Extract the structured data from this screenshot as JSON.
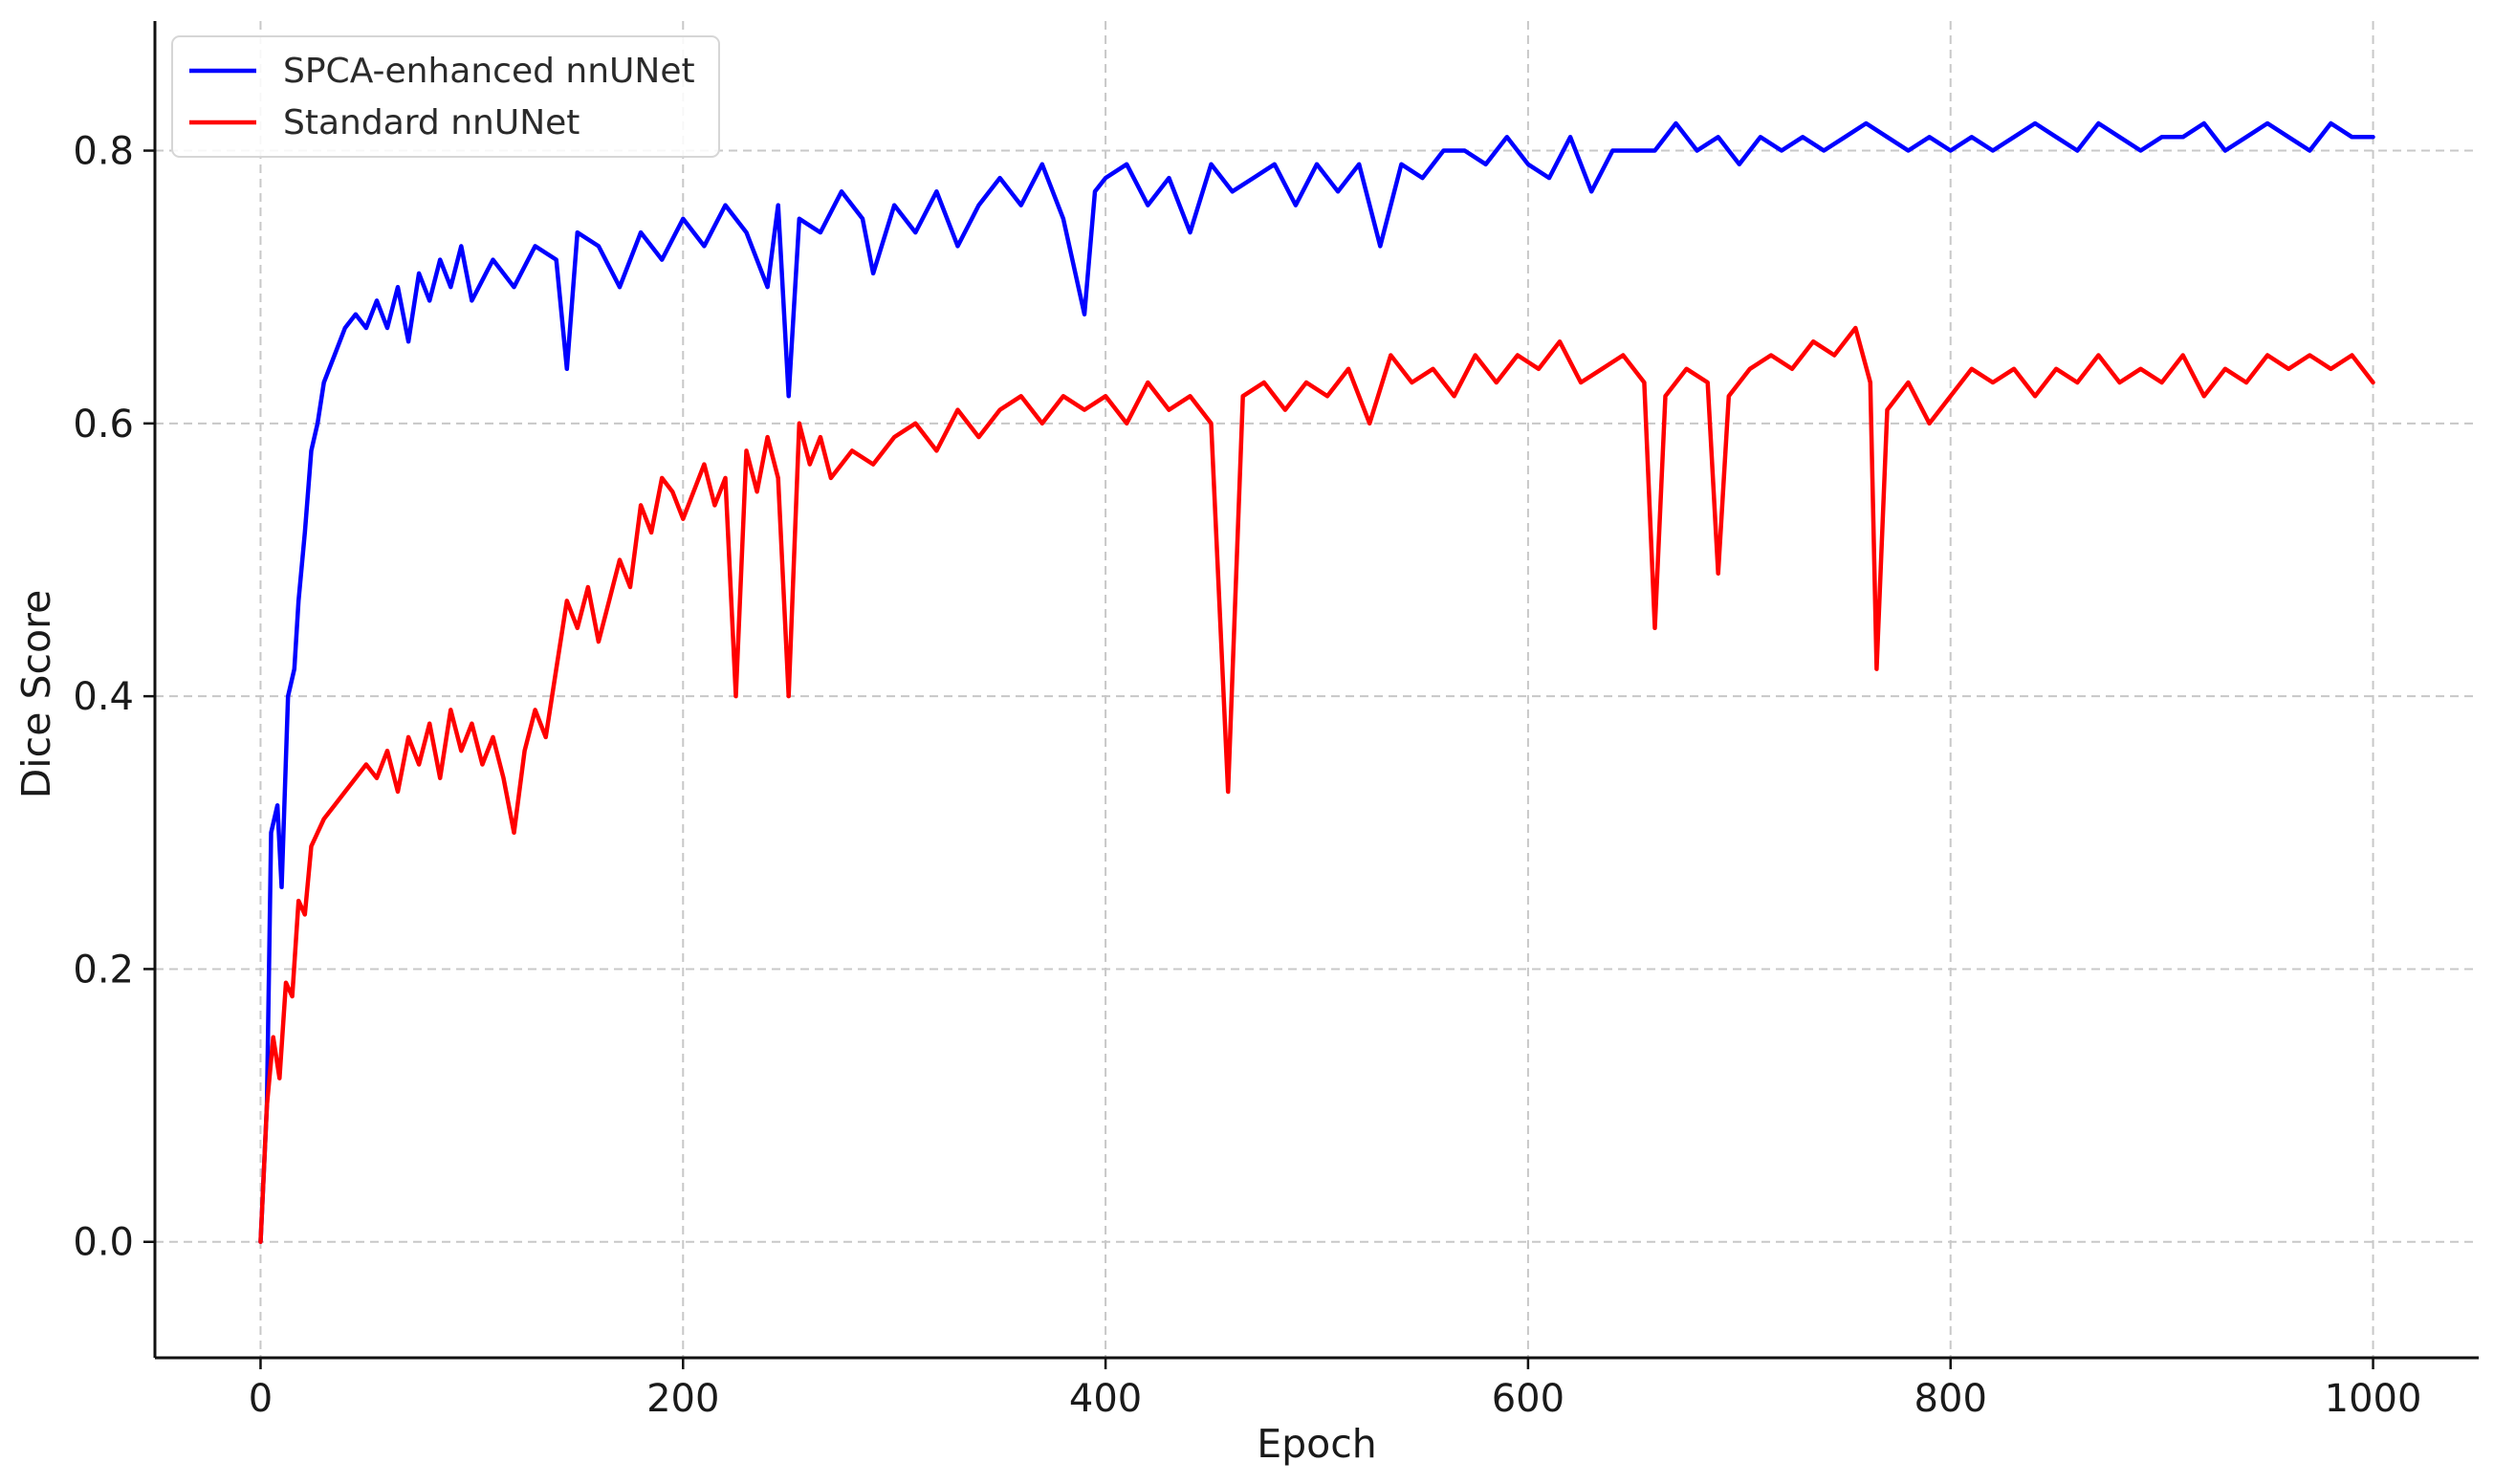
{
  "chart_data": {
    "type": "line",
    "title": "",
    "xlabel": "Epoch",
    "ylabel": "Dice Score",
    "xlim": [
      -50,
      1050
    ],
    "ylim": [
      -0.085,
      0.895
    ],
    "xticks": [
      0,
      200,
      400,
      600,
      800,
      1000
    ],
    "yticks": [
      0.0,
      0.2,
      0.4,
      0.6,
      0.8
    ],
    "xtick_labels": [
      "0",
      "200",
      "400",
      "600",
      "800",
      "1000"
    ],
    "ytick_labels": [
      "0.0",
      "0.2",
      "0.4",
      "0.6",
      "0.8"
    ],
    "grid": true,
    "legend_position": "upper-left",
    "series": [
      {
        "name": "SPCA-enhanced nnUNet",
        "color": "#0000ff",
        "points": [
          [
            0,
            0.0
          ],
          [
            3,
            0.1
          ],
          [
            5,
            0.3
          ],
          [
            8,
            0.32
          ],
          [
            10,
            0.26
          ],
          [
            13,
            0.4
          ],
          [
            16,
            0.42
          ],
          [
            18,
            0.47
          ],
          [
            21,
            0.52
          ],
          [
            24,
            0.58
          ],
          [
            27,
            0.6
          ],
          [
            30,
            0.63
          ],
          [
            35,
            0.65
          ],
          [
            40,
            0.67
          ],
          [
            45,
            0.68
          ],
          [
            50,
            0.67
          ],
          [
            55,
            0.69
          ],
          [
            60,
            0.67
          ],
          [
            65,
            0.7
          ],
          [
            70,
            0.66
          ],
          [
            75,
            0.71
          ],
          [
            80,
            0.69
          ],
          [
            85,
            0.72
          ],
          [
            90,
            0.7
          ],
          [
            95,
            0.73
          ],
          [
            100,
            0.69
          ],
          [
            110,
            0.72
          ],
          [
            120,
            0.7
          ],
          [
            130,
            0.73
          ],
          [
            140,
            0.72
          ],
          [
            145,
            0.64
          ],
          [
            150,
            0.74
          ],
          [
            160,
            0.73
          ],
          [
            170,
            0.7
          ],
          [
            180,
            0.74
          ],
          [
            190,
            0.72
          ],
          [
            200,
            0.75
          ],
          [
            210,
            0.73
          ],
          [
            220,
            0.76
          ],
          [
            230,
            0.74
          ],
          [
            240,
            0.7
          ],
          [
            245,
            0.76
          ],
          [
            250,
            0.62
          ],
          [
            255,
            0.75
          ],
          [
            265,
            0.74
          ],
          [
            275,
            0.77
          ],
          [
            285,
            0.75
          ],
          [
            290,
            0.71
          ],
          [
            300,
            0.76
          ],
          [
            310,
            0.74
          ],
          [
            320,
            0.77
          ],
          [
            330,
            0.73
          ],
          [
            340,
            0.76
          ],
          [
            350,
            0.78
          ],
          [
            360,
            0.76
          ],
          [
            370,
            0.79
          ],
          [
            380,
            0.75
          ],
          [
            390,
            0.68
          ],
          [
            395,
            0.77
          ],
          [
            400,
            0.78
          ],
          [
            410,
            0.79
          ],
          [
            420,
            0.76
          ],
          [
            430,
            0.78
          ],
          [
            440,
            0.74
          ],
          [
            450,
            0.79
          ],
          [
            460,
            0.77
          ],
          [
            470,
            0.78
          ],
          [
            480,
            0.79
          ],
          [
            490,
            0.76
          ],
          [
            500,
            0.79
          ],
          [
            510,
            0.77
          ],
          [
            520,
            0.79
          ],
          [
            530,
            0.73
          ],
          [
            540,
            0.79
          ],
          [
            550,
            0.78
          ],
          [
            560,
            0.8
          ],
          [
            570,
            0.8
          ],
          [
            580,
            0.79
          ],
          [
            590,
            0.81
          ],
          [
            600,
            0.79
          ],
          [
            610,
            0.78
          ],
          [
            620,
            0.81
          ],
          [
            630,
            0.77
          ],
          [
            640,
            0.8
          ],
          [
            650,
            0.8
          ],
          [
            660,
            0.8
          ],
          [
            670,
            0.82
          ],
          [
            680,
            0.8
          ],
          [
            690,
            0.81
          ],
          [
            700,
            0.79
          ],
          [
            710,
            0.81
          ],
          [
            720,
            0.8
          ],
          [
            730,
            0.81
          ],
          [
            740,
            0.8
          ],
          [
            750,
            0.81
          ],
          [
            760,
            0.82
          ],
          [
            770,
            0.81
          ],
          [
            780,
            0.8
          ],
          [
            790,
            0.81
          ],
          [
            800,
            0.8
          ],
          [
            810,
            0.81
          ],
          [
            820,
            0.8
          ],
          [
            830,
            0.81
          ],
          [
            840,
            0.82
          ],
          [
            850,
            0.81
          ],
          [
            860,
            0.8
          ],
          [
            870,
            0.82
          ],
          [
            880,
            0.81
          ],
          [
            890,
            0.8
          ],
          [
            900,
            0.81
          ],
          [
            910,
            0.81
          ],
          [
            920,
            0.82
          ],
          [
            930,
            0.8
          ],
          [
            940,
            0.81
          ],
          [
            950,
            0.82
          ],
          [
            960,
            0.81
          ],
          [
            970,
            0.8
          ],
          [
            980,
            0.82
          ],
          [
            990,
            0.81
          ],
          [
            1000,
            0.81
          ]
        ]
      },
      {
        "name": "Standard nnUNet",
        "color": "#ff0000",
        "points": [
          [
            0,
            0.0
          ],
          [
            3,
            0.1
          ],
          [
            6,
            0.15
          ],
          [
            9,
            0.12
          ],
          [
            12,
            0.19
          ],
          [
            15,
            0.18
          ],
          [
            18,
            0.25
          ],
          [
            21,
            0.24
          ],
          [
            24,
            0.29
          ],
          [
            27,
            0.3
          ],
          [
            30,
            0.31
          ],
          [
            35,
            0.32
          ],
          [
            40,
            0.33
          ],
          [
            45,
            0.34
          ],
          [
            50,
            0.35
          ],
          [
            55,
            0.34
          ],
          [
            60,
            0.36
          ],
          [
            65,
            0.33
          ],
          [
            70,
            0.37
          ],
          [
            75,
            0.35
          ],
          [
            80,
            0.38
          ],
          [
            85,
            0.34
          ],
          [
            90,
            0.39
          ],
          [
            95,
            0.36
          ],
          [
            100,
            0.38
          ],
          [
            105,
            0.35
          ],
          [
            110,
            0.37
          ],
          [
            115,
            0.34
          ],
          [
            120,
            0.3
          ],
          [
            125,
            0.36
          ],
          [
            130,
            0.39
          ],
          [
            135,
            0.37
          ],
          [
            140,
            0.42
          ],
          [
            145,
            0.47
          ],
          [
            150,
            0.45
          ],
          [
            155,
            0.48
          ],
          [
            160,
            0.44
          ],
          [
            165,
            0.47
          ],
          [
            170,
            0.5
          ],
          [
            175,
            0.48
          ],
          [
            180,
            0.54
          ],
          [
            185,
            0.52
          ],
          [
            190,
            0.56
          ],
          [
            195,
            0.55
          ],
          [
            200,
            0.53
          ],
          [
            205,
            0.55
          ],
          [
            210,
            0.57
          ],
          [
            215,
            0.54
          ],
          [
            220,
            0.56
          ],
          [
            225,
            0.4
          ],
          [
            230,
            0.58
          ],
          [
            235,
            0.55
          ],
          [
            240,
            0.59
          ],
          [
            245,
            0.56
          ],
          [
            250,
            0.4
          ],
          [
            255,
            0.6
          ],
          [
            260,
            0.57
          ],
          [
            265,
            0.59
          ],
          [
            270,
            0.56
          ],
          [
            280,
            0.58
          ],
          [
            290,
            0.57
          ],
          [
            300,
            0.59
          ],
          [
            310,
            0.6
          ],
          [
            320,
            0.58
          ],
          [
            330,
            0.61
          ],
          [
            340,
            0.59
          ],
          [
            350,
            0.61
          ],
          [
            360,
            0.62
          ],
          [
            370,
            0.6
          ],
          [
            380,
            0.62
          ],
          [
            390,
            0.61
          ],
          [
            400,
            0.62
          ],
          [
            410,
            0.6
          ],
          [
            420,
            0.63
          ],
          [
            430,
            0.61
          ],
          [
            440,
            0.62
          ],
          [
            450,
            0.6
          ],
          [
            458,
            0.33
          ],
          [
            465,
            0.62
          ],
          [
            475,
            0.63
          ],
          [
            485,
            0.61
          ],
          [
            495,
            0.63
          ],
          [
            505,
            0.62
          ],
          [
            515,
            0.64
          ],
          [
            525,
            0.6
          ],
          [
            535,
            0.65
          ],
          [
            545,
            0.63
          ],
          [
            555,
            0.64
          ],
          [
            565,
            0.62
          ],
          [
            575,
            0.65
          ],
          [
            585,
            0.63
          ],
          [
            595,
            0.65
          ],
          [
            605,
            0.64
          ],
          [
            615,
            0.66
          ],
          [
            625,
            0.63
          ],
          [
            635,
            0.64
          ],
          [
            645,
            0.65
          ],
          [
            655,
            0.63
          ],
          [
            660,
            0.45
          ],
          [
            665,
            0.62
          ],
          [
            675,
            0.64
          ],
          [
            685,
            0.63
          ],
          [
            690,
            0.49
          ],
          [
            695,
            0.62
          ],
          [
            705,
            0.64
          ],
          [
            715,
            0.65
          ],
          [
            725,
            0.64
          ],
          [
            735,
            0.66
          ],
          [
            745,
            0.65
          ],
          [
            755,
            0.67
          ],
          [
            762,
            0.63
          ],
          [
            765,
            0.42
          ],
          [
            770,
            0.61
          ],
          [
            780,
            0.63
          ],
          [
            790,
            0.6
          ],
          [
            800,
            0.62
          ],
          [
            810,
            0.64
          ],
          [
            820,
            0.63
          ],
          [
            830,
            0.64
          ],
          [
            840,
            0.62
          ],
          [
            850,
            0.64
          ],
          [
            860,
            0.63
          ],
          [
            870,
            0.65
          ],
          [
            880,
            0.63
          ],
          [
            890,
            0.64
          ],
          [
            900,
            0.63
          ],
          [
            910,
            0.65
          ],
          [
            920,
            0.62
          ],
          [
            930,
            0.64
          ],
          [
            940,
            0.63
          ],
          [
            950,
            0.65
          ],
          [
            960,
            0.64
          ],
          [
            970,
            0.65
          ],
          [
            980,
            0.64
          ],
          [
            990,
            0.65
          ],
          [
            1000,
            0.63
          ]
        ]
      }
    ]
  }
}
